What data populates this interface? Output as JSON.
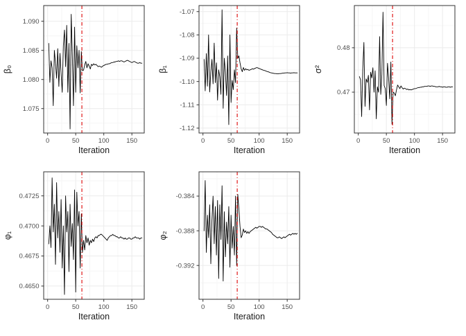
{
  "figure": {
    "kind": "mcmc-trace-plot-grid",
    "rows": 2,
    "cols": 3,
    "xlabel": "Iteration"
  },
  "style": {
    "panel_background": "#ffffff",
    "panel_border": "#333333",
    "grid_major": "#ebebeb",
    "grid_minor": "#f6f6f6",
    "trace_color": "#000000",
    "tick_text_color": "#4d4d4d",
    "axis_title_color": "#1a1a1a",
    "tick_mark_color": "#333333",
    "vline_color": "#dd0000",
    "vline_style": "dash-dot"
  },
  "chart_data": [
    {
      "type": "line",
      "name": "beta0",
      "ylabel": "β₀",
      "xlabel": "Iteration",
      "xlim": [
        -7,
        172
      ],
      "ylim": [
        1.0708,
        1.0927
      ],
      "x_ticks": [
        0,
        50,
        100,
        150
      ],
      "y_ticks": [
        1.075,
        1.08,
        1.085,
        1.09
      ],
      "y_tick_labels": [
        "1.075",
        "1.080",
        "1.085",
        "1.090"
      ],
      "vline_x": 61,
      "x_start": 2,
      "x_step": 2,
      "values": [
        1.0862,
        1.0795,
        1.0832,
        1.082,
        1.0755,
        1.085,
        1.0828,
        1.0802,
        1.0853,
        1.0788,
        1.0845,
        1.081,
        1.0778,
        1.0858,
        1.0885,
        1.0822,
        1.0893,
        1.0778,
        1.0862,
        1.0715,
        1.0912,
        1.084,
        1.0755,
        1.089,
        1.0778,
        1.0858,
        1.082,
        1.085,
        1.0777,
        1.0848,
        1.0815,
        1.0816,
        1.0825,
        1.0831,
        1.082,
        1.0827,
        1.0823,
        1.0818,
        1.0826,
        1.0824,
        1.0827,
        1.0825,
        1.0826,
        1.0824,
        1.0822,
        1.0823,
        1.0822,
        1.0821,
        1.0823,
        1.0824,
        1.0825,
        1.0826,
        1.0826,
        1.0827,
        1.0827,
        1.0828,
        1.0829,
        1.0829,
        1.083,
        1.083,
        1.0831,
        1.0831,
        1.0832,
        1.0831,
        1.0832,
        1.0832,
        1.0831,
        1.083,
        1.0831,
        1.0832,
        1.0833,
        1.0832,
        1.0831,
        1.083,
        1.0829,
        1.083,
        1.0831,
        1.083,
        1.0829,
        1.0828,
        1.0828,
        1.0829,
        1.0828,
        1.0828
      ]
    },
    {
      "type": "line",
      "name": "beta1",
      "ylabel": "β₁",
      "xlabel": "Iteration",
      "xlim": [
        -7,
        172
      ],
      "ylim": [
        -1.1221,
        -1.0674
      ],
      "x_ticks": [
        0,
        50,
        100,
        150
      ],
      "y_ticks": [
        -1.12,
        -1.11,
        -1.1,
        -1.09,
        -1.08,
        -1.07
      ],
      "y_tick_labels": [
        "-1.12",
        "-1.11",
        "-1.10",
        "-1.09",
        "-1.08",
        "-1.07"
      ],
      "vline_x": 61,
      "x_start": 2,
      "x_step": 2,
      "values": [
        -1.0905,
        -1.104,
        -1.088,
        -1.102,
        -1.08,
        -1.1045,
        -1.096,
        -1.0905,
        -1.101,
        -1.0835,
        -1.1005,
        -1.092,
        -1.108,
        -1.095,
        -1.098,
        -1.1055,
        -1.0692,
        -1.1115,
        -1.09,
        -1.096,
        -1.106,
        -1.089,
        -1.1185,
        -1.08,
        -1.109,
        -1.0995,
        -1.1035,
        -1.095,
        -1.1005,
        -1.077,
        -1.09,
        -1.089,
        -1.092,
        -1.0945,
        -1.0958,
        -1.094,
        -1.0952,
        -1.0945,
        -1.095,
        -1.0948,
        -1.0952,
        -1.095,
        -1.0948,
        -1.0945,
        -1.0947,
        -1.0944,
        -1.0942,
        -1.094,
        -1.0942,
        -1.0944,
        -1.0946,
        -1.0948,
        -1.095,
        -1.0952,
        -1.0953,
        -1.0955,
        -1.0957,
        -1.0958,
        -1.096,
        -1.0962,
        -1.0963,
        -1.0964,
        -1.0965,
        -1.0966,
        -1.0966,
        -1.0967,
        -1.0967,
        -1.0966,
        -1.0966,
        -1.0965,
        -1.0964,
        -1.0964,
        -1.0963,
        -1.0963,
        -1.0962,
        -1.0963,
        -1.0963,
        -1.0964,
        -1.0963,
        -1.0963,
        -1.0962,
        -1.0963,
        -1.0963,
        -1.0963
      ]
    },
    {
      "type": "line",
      "name": "sigma2",
      "ylabel": "σ²",
      "xlabel": "Iteration",
      "xlim": [
        -7,
        172
      ],
      "ylim": [
        0.4608,
        0.4895
      ],
      "x_ticks": [
        0,
        50,
        100,
        150
      ],
      "y_ticks": [
        0.47,
        0.48
      ],
      "y_tick_labels": [
        "0.47",
        "0.48"
      ],
      "vline_x": 61,
      "x_start": 2,
      "x_step": 2,
      "values": [
        0.4735,
        0.4728,
        0.4645,
        0.4752,
        0.4812,
        0.4668,
        0.473,
        0.4722,
        0.4738,
        0.466,
        0.4745,
        0.4732,
        0.4755,
        0.47,
        0.4748,
        0.464,
        0.4712,
        0.47,
        0.4825,
        0.4695,
        0.474,
        0.488,
        0.4715,
        0.4708,
        0.467,
        0.4765,
        0.4732,
        0.4685,
        0.4768,
        0.4628,
        0.47,
        0.4698,
        0.4692,
        0.4705,
        0.4716,
        0.4712,
        0.4708,
        0.4714,
        0.471,
        0.4707,
        0.4709,
        0.4708,
        0.4706,
        0.4707,
        0.4705,
        0.4706,
        0.4705,
        0.4706,
        0.4707,
        0.4708,
        0.4708,
        0.4709,
        0.471,
        0.471,
        0.4711,
        0.4711,
        0.4712,
        0.4712,
        0.4713,
        0.4713,
        0.4713,
        0.4714,
        0.4714,
        0.4713,
        0.4714,
        0.4714,
        0.4713,
        0.4713,
        0.4712,
        0.4712,
        0.4712,
        0.4713,
        0.4712,
        0.4712,
        0.4711,
        0.4712,
        0.4712,
        0.4711,
        0.4711,
        0.4712,
        0.4712,
        0.4711,
        0.4712,
        0.4712
      ]
    },
    {
      "type": "line",
      "name": "phi1",
      "ylabel": "φ₁",
      "xlabel": "Iteration",
      "xlim": [
        -7,
        172
      ],
      "ylim": [
        0.4639,
        0.4745
      ],
      "x_ticks": [
        0,
        50,
        100,
        150
      ],
      "y_ticks": [
        0.465,
        0.4675,
        0.47,
        0.4725
      ],
      "y_tick_labels": [
        "0.4650",
        "0.4675",
        "0.4700",
        "0.4725"
      ],
      "vline_x": 61,
      "x_start": 2,
      "x_step": 2,
      "values": [
        0.4685,
        0.47,
        0.4682,
        0.474,
        0.4695,
        0.4718,
        0.4668,
        0.4736,
        0.469,
        0.4712,
        0.4678,
        0.4722,
        0.4665,
        0.47,
        0.4643,
        0.4725,
        0.4695,
        0.4712,
        0.4662,
        0.4718,
        0.4683,
        0.4702,
        0.4672,
        0.473,
        0.4645,
        0.4728,
        0.47,
        0.4712,
        0.4665,
        0.471,
        0.4678,
        0.4688,
        0.468,
        0.4692,
        0.4686,
        0.469,
        0.4684,
        0.4688,
        0.4686,
        0.4689,
        0.4687,
        0.469,
        0.4691,
        0.469,
        0.4692,
        0.4692,
        0.4693,
        0.4693,
        0.4692,
        0.4691,
        0.469,
        0.4689,
        0.4688,
        0.469,
        0.4691,
        0.4692,
        0.4692,
        0.4693,
        0.4692,
        0.4692,
        0.4691,
        0.4691,
        0.469,
        0.469,
        0.4691,
        0.469,
        0.469,
        0.4689,
        0.469,
        0.4689,
        0.4689,
        0.469,
        0.469,
        0.4689,
        0.4689,
        0.469,
        0.469,
        0.4691,
        0.469,
        0.469,
        0.469,
        0.4689,
        0.469,
        0.469
      ]
    },
    {
      "type": "line",
      "name": "phi2",
      "ylabel": "φ₂",
      "xlabel": "Iteration",
      "xlim": [
        -7,
        172
      ],
      "ylim": [
        -0.3959,
        -0.3812
      ],
      "x_ticks": [
        0,
        50,
        100,
        150
      ],
      "y_ticks": [
        -0.392,
        -0.388,
        -0.384
      ],
      "y_tick_labels": [
        "-0.392",
        "-0.388",
        "-0.384"
      ],
      "vline_x": 61,
      "x_start": 2,
      "x_step": 2,
      "values": [
        -0.388,
        -0.3822,
        -0.3905,
        -0.3862,
        -0.3888,
        -0.385,
        -0.3918,
        -0.3868,
        -0.384,
        -0.3895,
        -0.3852,
        -0.3908,
        -0.3845,
        -0.3935,
        -0.385,
        -0.389,
        -0.3828,
        -0.3938,
        -0.3858,
        -0.391,
        -0.387,
        -0.3895,
        -0.3852,
        -0.3922,
        -0.3862,
        -0.39,
        -0.3875,
        -0.3908,
        -0.384,
        -0.392,
        -0.3838,
        -0.3855,
        -0.3875,
        -0.3888,
        -0.3885,
        -0.3878,
        -0.3882,
        -0.388,
        -0.3883,
        -0.3881,
        -0.3883,
        -0.3881,
        -0.388,
        -0.3879,
        -0.3878,
        -0.3877,
        -0.3876,
        -0.3877,
        -0.3876,
        -0.3875,
        -0.3875,
        -0.3876,
        -0.3875,
        -0.3876,
        -0.3877,
        -0.3878,
        -0.3878,
        -0.3879,
        -0.388,
        -0.3881,
        -0.3882,
        -0.3884,
        -0.3885,
        -0.3886,
        -0.3887,
        -0.3888,
        -0.3888,
        -0.3887,
        -0.3888,
        -0.3889,
        -0.3888,
        -0.3887,
        -0.3888,
        -0.3887,
        -0.3886,
        -0.3885,
        -0.3884,
        -0.3885,
        -0.3884,
        -0.3883,
        -0.3884,
        -0.3883,
        -0.3884,
        -0.3883
      ]
    }
  ]
}
